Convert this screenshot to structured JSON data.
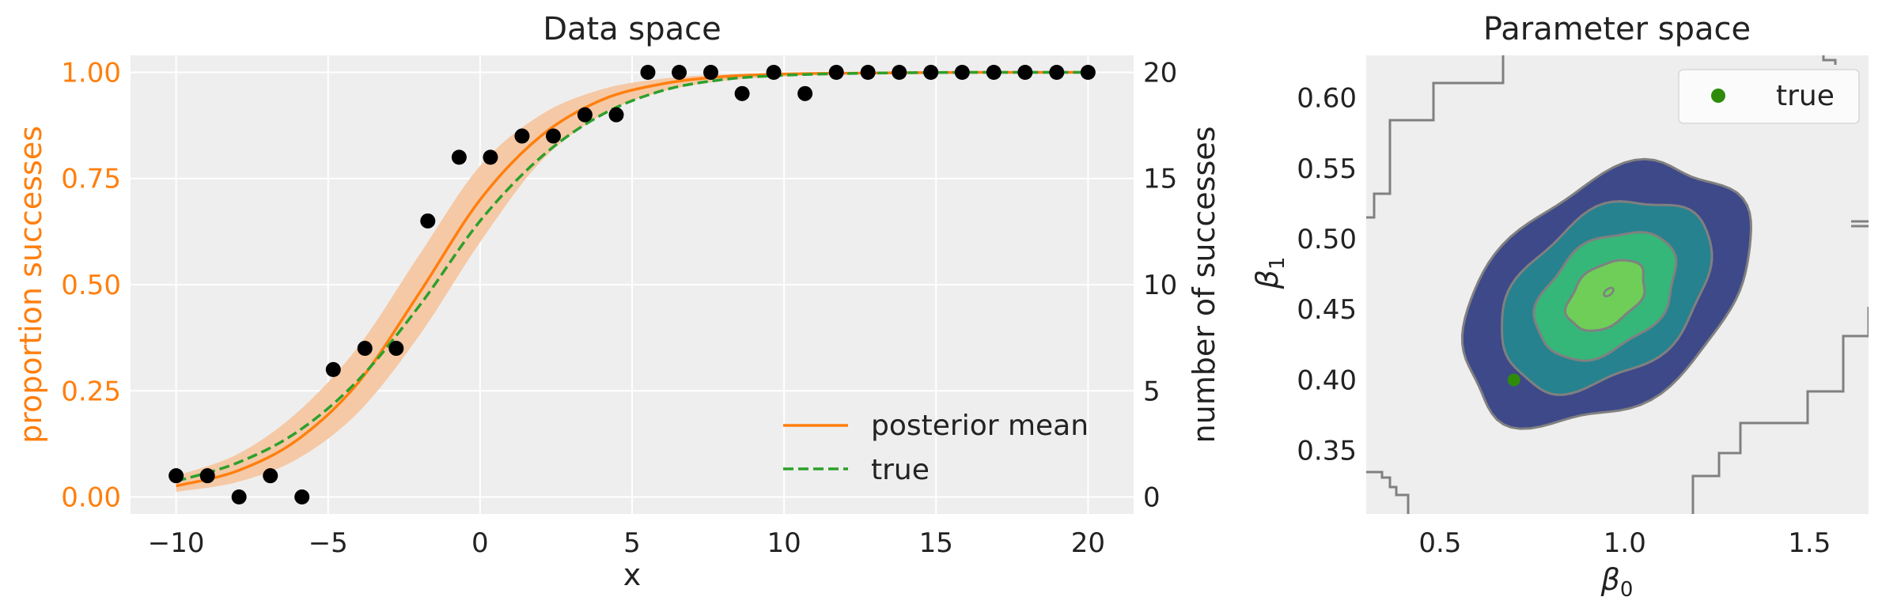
{
  "chart_data": [
    {
      "type": "scatter",
      "title": "Data space",
      "xlabel": "x",
      "ylabel": "proportion successes",
      "ylabel_right": "number of successes",
      "xlim": [
        -11.5,
        21.5
      ],
      "ylim": [
        -0.04,
        1.04
      ],
      "ylim_right": [
        -0.8,
        20.8
      ],
      "x_ticks": [
        -10,
        -5,
        0,
        5,
        10,
        15,
        20
      ],
      "x_tick_labels": [
        "−10",
        "−5",
        "0",
        "5",
        "10",
        "15",
        "20"
      ],
      "y_ticks": [
        0.0,
        0.25,
        0.5,
        0.75,
        1.0
      ],
      "y_tick_labels": [
        "0.00",
        "0.25",
        "0.50",
        "0.75",
        "1.00"
      ],
      "y_right_ticks": [
        0,
        5,
        10,
        15,
        20
      ],
      "y_right_tick_labels": [
        "0",
        "5",
        "10",
        "15",
        "20"
      ],
      "grid": true,
      "legend_position": "bottom-right",
      "colors": {
        "posterior": "#ff7f0e",
        "band": "#f5c9a6",
        "true": "#2ca02c",
        "points": "#000000",
        "axes_bg": "#eeeeee",
        "grid": "#ffffff"
      },
      "observed": {
        "x": [
          -10,
          -8.97,
          -7.93,
          -6.9,
          -5.86,
          -4.83,
          -3.79,
          -2.76,
          -1.72,
          -0.69,
          0.34,
          1.38,
          2.41,
          3.45,
          4.48,
          5.52,
          6.55,
          7.59,
          8.62,
          9.66,
          10.69,
          11.72,
          12.76,
          13.79,
          14.83,
          15.86,
          16.9,
          17.93,
          18.97,
          20
        ],
        "y": [
          0.05,
          0.05,
          0.0,
          0.05,
          0.0,
          0.3,
          0.35,
          0.35,
          0.65,
          0.8,
          0.8,
          0.85,
          0.85,
          0.9,
          0.9,
          1.0,
          1.0,
          1.0,
          0.95,
          1.0,
          0.95,
          1.0,
          1.0,
          1.0,
          1.0,
          1.0,
          1.0,
          1.0,
          1.0,
          1.0
        ]
      },
      "series": [
        {
          "name": "posterior mean",
          "style": "solid",
          "x": [
            -10,
            -8,
            -6,
            -4,
            -2,
            0,
            2,
            4,
            6,
            8,
            10,
            12,
            14,
            16,
            18,
            20
          ],
          "y": [
            0.026,
            0.061,
            0.135,
            0.27,
            0.48,
            0.7,
            0.85,
            0.935,
            0.973,
            0.99,
            0.996,
            0.998,
            0.999,
            1.0,
            1.0,
            1.0
          ]
        },
        {
          "name": "true",
          "style": "dashed",
          "x": [
            -10,
            -8,
            -6,
            -4,
            -2,
            0,
            2,
            4,
            6,
            8,
            10,
            12,
            14,
            16,
            18,
            20
          ],
          "y": [
            0.037,
            0.08,
            0.154,
            0.276,
            0.45,
            0.65,
            0.8,
            0.9,
            0.957,
            0.983,
            0.993,
            0.997,
            0.999,
            1.0,
            1.0,
            1.0
          ]
        }
      ],
      "band": {
        "x": [
          -10,
          -8,
          -6,
          -4,
          -2,
          0,
          2,
          4,
          6,
          8,
          10,
          12,
          14,
          16,
          18,
          20
        ],
        "lower": [
          0.012,
          0.035,
          0.09,
          0.2,
          0.38,
          0.6,
          0.79,
          0.9,
          0.955,
          0.98,
          0.99,
          0.996,
          0.998,
          0.999,
          1.0,
          1.0
        ],
        "upper": [
          0.05,
          0.1,
          0.2,
          0.355,
          0.57,
          0.78,
          0.9,
          0.96,
          0.985,
          0.995,
          0.998,
          0.999,
          1.0,
          1.0,
          1.0,
          1.0
        ]
      }
    },
    {
      "type": "contour",
      "title": "Parameter space",
      "xlabel": "β",
      "xlabel_sub": "0",
      "ylabel": "β",
      "ylabel_sub": "1",
      "xlim": [
        0.3,
        1.66
      ],
      "ylim": [
        0.305,
        0.63
      ],
      "x_ticks": [
        0.5,
        1.0,
        1.5
      ],
      "x_tick_labels": [
        "0.5",
        "1.0",
        "1.5"
      ],
      "y_ticks": [
        0.35,
        0.4,
        0.45,
        0.5,
        0.55,
        0.6
      ],
      "y_tick_labels": [
        "0.35",
        "0.40",
        "0.45",
        "0.50",
        "0.55",
        "0.60"
      ],
      "grid": false,
      "legend_position": "top-right",
      "center": [
        0.95,
        0.46
      ],
      "level_colors": [
        "#3e4989",
        "#26828e",
        "#35b779",
        "#6ece58"
      ],
      "line_color": "#808080",
      "true_point": {
        "name": "true",
        "x": 0.7,
        "y": 0.4,
        "color": "#2e8b0a"
      }
    }
  ]
}
